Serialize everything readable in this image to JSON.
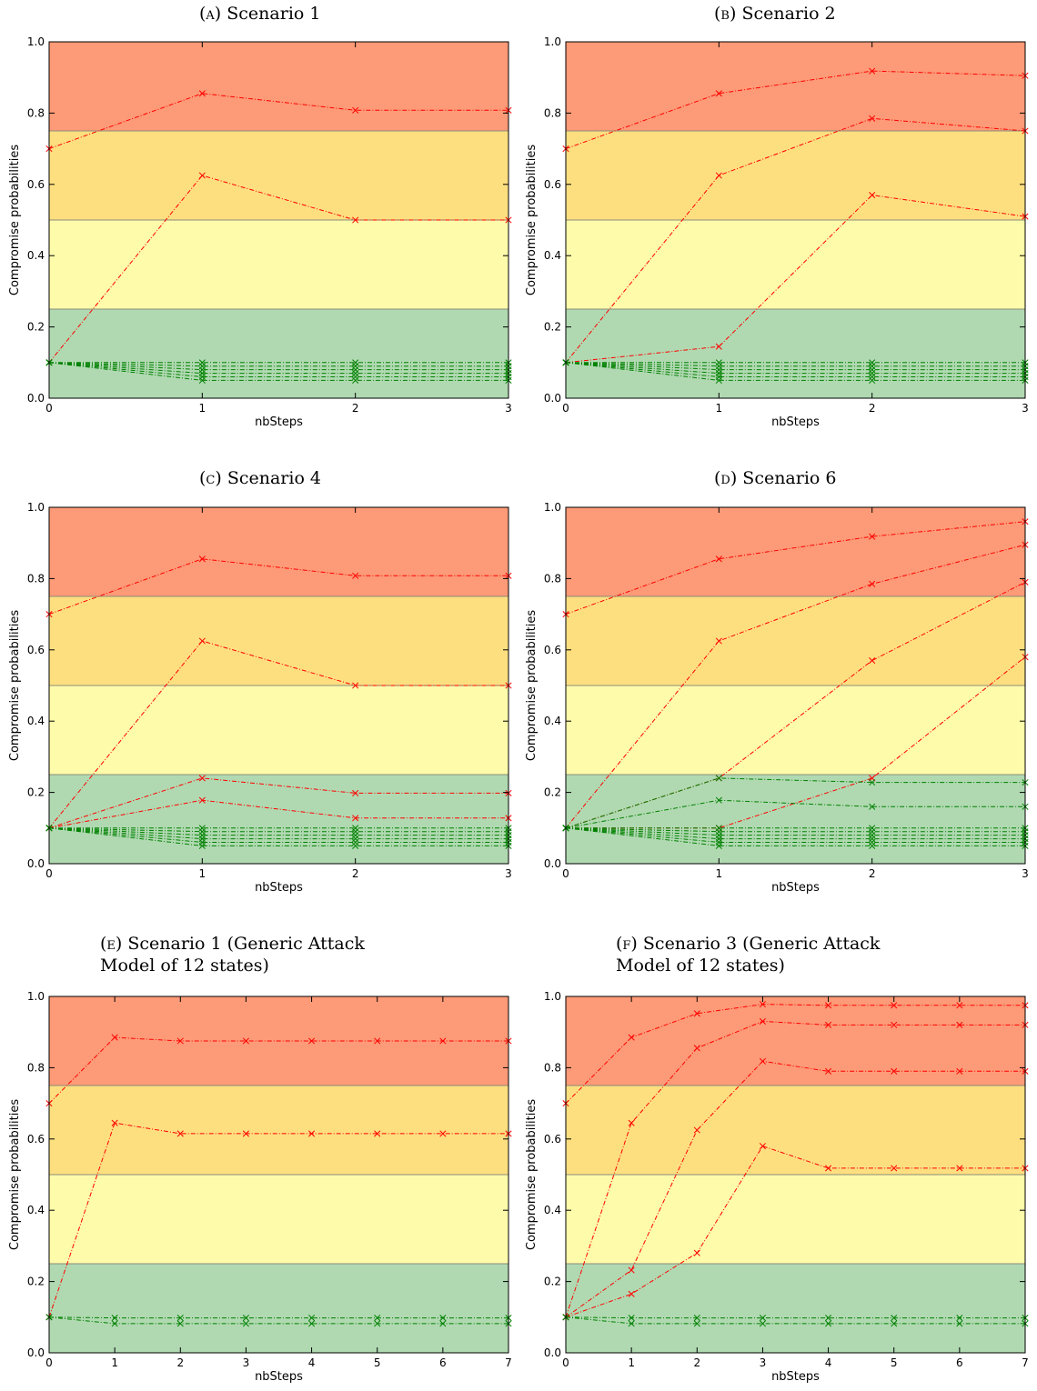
{
  "colors": {
    "red_zone": "#fd9a77",
    "orange_zone": "#fedf80",
    "yellow_zone": "#fefbaa",
    "green_zone": "#b0d9b1",
    "red_line": "#ff0000",
    "green_line": "#008000"
  },
  "chart_data": [
    {
      "type": "line",
      "panel_label": "(a)",
      "title": "Scenario 1",
      "xlabel": "nbSteps",
      "ylabel": "Compromise probabilities",
      "xlim": [
        0,
        3
      ],
      "ylim": [
        0,
        1.0
      ],
      "xticks": [
        "0",
        "1",
        "2",
        "3"
      ],
      "yticks": [
        "0.0",
        "0.2",
        "0.4",
        "0.6",
        "0.8",
        "1.0"
      ],
      "zones": [
        0.25,
        0.5,
        0.75
      ],
      "x": [
        0,
        1,
        2,
        3
      ],
      "series": [
        {
          "color": "red",
          "values": [
            0.7,
            0.855,
            0.808,
            0.808
          ]
        },
        {
          "color": "red",
          "values": [
            0.1,
            0.625,
            0.5,
            0.5
          ]
        },
        {
          "color": "green",
          "values": [
            0.1,
            0.1,
            0.1,
            0.1
          ]
        },
        {
          "color": "green",
          "values": [
            0.1,
            0.09,
            0.09,
            0.09
          ]
        },
        {
          "color": "green",
          "values": [
            0.1,
            0.08,
            0.08,
            0.08
          ]
        },
        {
          "color": "green",
          "values": [
            0.1,
            0.07,
            0.07,
            0.07
          ]
        },
        {
          "color": "green",
          "values": [
            0.1,
            0.06,
            0.06,
            0.06
          ]
        },
        {
          "color": "green",
          "values": [
            0.1,
            0.05,
            0.05,
            0.05
          ]
        }
      ]
    },
    {
      "type": "line",
      "panel_label": "(b)",
      "title": "Scenario 2",
      "xlabel": "nbSteps",
      "ylabel": "Compromise probabilities",
      "xlim": [
        0,
        3
      ],
      "ylim": [
        0,
        1.0
      ],
      "xticks": [
        "0",
        "1",
        "2",
        "3"
      ],
      "yticks": [
        "0.0",
        "0.2",
        "0.4",
        "0.6",
        "0.8",
        "1.0"
      ],
      "zones": [
        0.25,
        0.5,
        0.75
      ],
      "x": [
        0,
        1,
        2,
        3
      ],
      "series": [
        {
          "color": "red",
          "values": [
            0.7,
            0.855,
            0.918,
            0.905
          ]
        },
        {
          "color": "red",
          "values": [
            0.1,
            0.625,
            0.785,
            0.75
          ]
        },
        {
          "color": "red",
          "values": [
            0.1,
            0.145,
            0.57,
            0.51
          ]
        },
        {
          "color": "green",
          "values": [
            0.1,
            0.1,
            0.1,
            0.1
          ]
        },
        {
          "color": "green",
          "values": [
            0.1,
            0.09,
            0.09,
            0.09
          ]
        },
        {
          "color": "green",
          "values": [
            0.1,
            0.08,
            0.08,
            0.08
          ]
        },
        {
          "color": "green",
          "values": [
            0.1,
            0.07,
            0.07,
            0.07
          ]
        },
        {
          "color": "green",
          "values": [
            0.1,
            0.06,
            0.06,
            0.06
          ]
        },
        {
          "color": "green",
          "values": [
            0.1,
            0.05,
            0.05,
            0.05
          ]
        }
      ]
    },
    {
      "type": "line",
      "panel_label": "(c)",
      "title": "Scenario 4",
      "xlabel": "nbSteps",
      "ylabel": "Compromise probabilities",
      "xlim": [
        0,
        3
      ],
      "ylim": [
        0,
        1.0
      ],
      "xticks": [
        "0",
        "1",
        "2",
        "3"
      ],
      "yticks": [
        "0.0",
        "0.2",
        "0.4",
        "0.6",
        "0.8",
        "1.0"
      ],
      "zones": [
        0.25,
        0.5,
        0.75
      ],
      "x": [
        0,
        1,
        2,
        3
      ],
      "series": [
        {
          "color": "red",
          "values": [
            0.7,
            0.855,
            0.808,
            0.808
          ]
        },
        {
          "color": "red",
          "values": [
            0.1,
            0.625,
            0.5,
            0.5
          ]
        },
        {
          "color": "red",
          "values": [
            0.1,
            0.24,
            0.198,
            0.198
          ]
        },
        {
          "color": "red",
          "values": [
            0.1,
            0.178,
            0.128,
            0.128
          ]
        },
        {
          "color": "green",
          "values": [
            0.1,
            0.1,
            0.1,
            0.1
          ]
        },
        {
          "color": "green",
          "values": [
            0.1,
            0.09,
            0.09,
            0.09
          ]
        },
        {
          "color": "green",
          "values": [
            0.1,
            0.08,
            0.08,
            0.08
          ]
        },
        {
          "color": "green",
          "values": [
            0.1,
            0.07,
            0.07,
            0.07
          ]
        },
        {
          "color": "green",
          "values": [
            0.1,
            0.06,
            0.06,
            0.06
          ]
        },
        {
          "color": "green",
          "values": [
            0.1,
            0.05,
            0.05,
            0.05
          ]
        }
      ]
    },
    {
      "type": "line",
      "panel_label": "(d)",
      "title": "Scenario 6",
      "xlabel": "nbSteps",
      "ylabel": "Compromise probabilities",
      "xlim": [
        0,
        3
      ],
      "ylim": [
        0,
        1.0
      ],
      "xticks": [
        "0",
        "1",
        "2",
        "3"
      ],
      "yticks": [
        "0.0",
        "0.2",
        "0.4",
        "0.6",
        "0.8",
        "1.0"
      ],
      "zones": [
        0.25,
        0.5,
        0.75
      ],
      "x": [
        0,
        1,
        2,
        3
      ],
      "series": [
        {
          "color": "red",
          "values": [
            0.7,
            0.855,
            0.918,
            0.96
          ]
        },
        {
          "color": "red",
          "values": [
            0.1,
            0.625,
            0.785,
            0.895
          ]
        },
        {
          "color": "red",
          "values": [
            0.1,
            0.24,
            0.57,
            0.79
          ]
        },
        {
          "color": "red",
          "values": [
            0.1,
            0.1,
            0.24,
            0.58
          ]
        },
        {
          "color": "green",
          "values": [
            0.1,
            0.24,
            0.228,
            0.228
          ]
        },
        {
          "color": "green",
          "values": [
            0.1,
            0.178,
            0.16,
            0.16
          ]
        },
        {
          "color": "green",
          "values": [
            0.1,
            0.1,
            0.1,
            0.1
          ]
        },
        {
          "color": "green",
          "values": [
            0.1,
            0.09,
            0.09,
            0.09
          ]
        },
        {
          "color": "green",
          "values": [
            0.1,
            0.08,
            0.08,
            0.08
          ]
        },
        {
          "color": "green",
          "values": [
            0.1,
            0.07,
            0.07,
            0.07
          ]
        },
        {
          "color": "green",
          "values": [
            0.1,
            0.06,
            0.06,
            0.06
          ]
        },
        {
          "color": "green",
          "values": [
            0.1,
            0.05,
            0.05,
            0.05
          ]
        }
      ]
    },
    {
      "type": "line",
      "panel_label": "(e)",
      "title": "Scenario 1 (Generic Attack\nModel of 12 states)",
      "xlabel": "nbSteps",
      "ylabel": "Compromise probabilities",
      "xlim": [
        0,
        7
      ],
      "ylim": [
        0,
        1.0
      ],
      "xticks": [
        "0",
        "1",
        "2",
        "3",
        "4",
        "5",
        "6",
        "7"
      ],
      "yticks": [
        "0.0",
        "0.2",
        "0.4",
        "0.6",
        "0.8",
        "1.0"
      ],
      "zones": [
        0.25,
        0.5,
        0.75
      ],
      "x": [
        0,
        1,
        2,
        3,
        4,
        5,
        6,
        7
      ],
      "series": [
        {
          "color": "red",
          "values": [
            0.7,
            0.885,
            0.875,
            0.875,
            0.875,
            0.875,
            0.875,
            0.875
          ]
        },
        {
          "color": "red",
          "values": [
            0.1,
            0.645,
            0.615,
            0.615,
            0.615,
            0.615,
            0.615,
            0.615
          ]
        },
        {
          "color": "green",
          "values": [
            0.1,
            0.098,
            0.098,
            0.098,
            0.098,
            0.098,
            0.098,
            0.098
          ]
        },
        {
          "color": "green",
          "values": [
            0.1,
            0.082,
            0.082,
            0.082,
            0.082,
            0.082,
            0.082,
            0.082
          ]
        }
      ]
    },
    {
      "type": "line",
      "panel_label": "(f)",
      "title": "Scenario 3 (Generic Attack\nModel of 12 states)",
      "xlabel": "nbSteps",
      "ylabel": "Compromise probabilities",
      "xlim": [
        0,
        7
      ],
      "ylim": [
        0,
        1.0
      ],
      "xticks": [
        "0",
        "1",
        "2",
        "3",
        "4",
        "5",
        "6",
        "7"
      ],
      "yticks": [
        "0.0",
        "0.2",
        "0.4",
        "0.6",
        "0.8",
        "1.0"
      ],
      "zones": [
        0.25,
        0.5,
        0.75
      ],
      "x": [
        0,
        1,
        2,
        3,
        4,
        5,
        6,
        7
      ],
      "series": [
        {
          "color": "red",
          "values": [
            0.7,
            0.885,
            0.952,
            0.978,
            0.975,
            0.975,
            0.975,
            0.975
          ]
        },
        {
          "color": "red",
          "values": [
            0.1,
            0.645,
            0.855,
            0.93,
            0.92,
            0.92,
            0.92,
            0.92
          ]
        },
        {
          "color": "red",
          "values": [
            0.1,
            0.232,
            0.625,
            0.818,
            0.79,
            0.79,
            0.79,
            0.79
          ]
        },
        {
          "color": "red",
          "values": [
            0.1,
            0.165,
            0.28,
            0.58,
            0.518,
            0.518,
            0.518,
            0.518
          ]
        },
        {
          "color": "green",
          "values": [
            0.1,
            0.098,
            0.098,
            0.098,
            0.098,
            0.098,
            0.098,
            0.098
          ]
        },
        {
          "color": "green",
          "values": [
            0.1,
            0.082,
            0.082,
            0.082,
            0.082,
            0.082,
            0.082,
            0.082
          ]
        }
      ]
    }
  ]
}
